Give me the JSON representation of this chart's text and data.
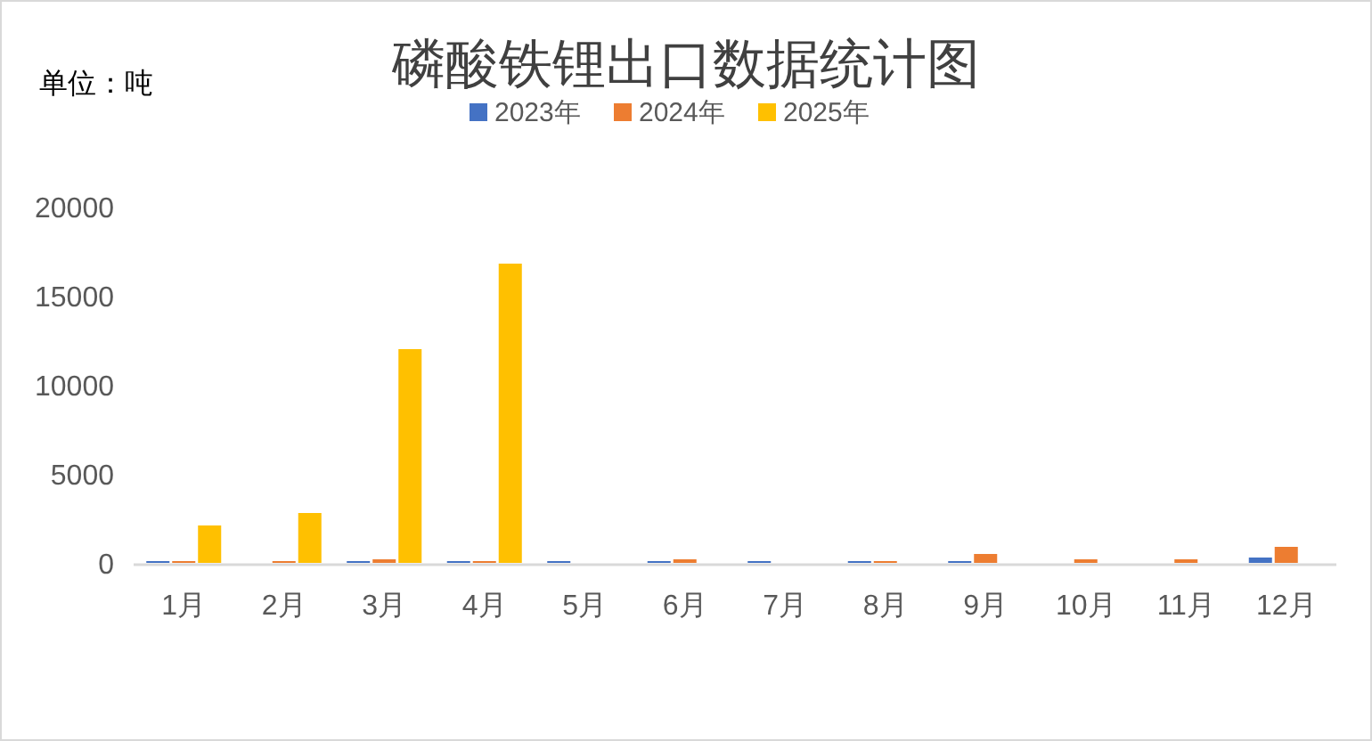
{
  "chart_data": {
    "type": "bar",
    "title": "磷酸铁锂出口数据统计图",
    "annotations": [
      "单位：吨"
    ],
    "categories": [
      "1月",
      "2月",
      "3月",
      "4月",
      "5月",
      "6月",
      "7月",
      "8月",
      "9月",
      "10月",
      "11月",
      "12月"
    ],
    "series": [
      {
        "name": "2023年",
        "color": "#4472c4",
        "values": [
          100,
          null,
          100,
          100,
          100,
          100,
          100,
          100,
          100,
          null,
          null,
          300
        ]
      },
      {
        "name": "2024年",
        "color": "#ed7d31",
        "values": [
          100,
          100,
          200,
          100,
          null,
          200,
          null,
          100,
          500,
          200,
          200,
          900
        ]
      },
      {
        "name": "2025年",
        "color": "#ffc000",
        "values": [
          2100,
          2800,
          12000,
          16800,
          null,
          null,
          null,
          null,
          null,
          null,
          null,
          null
        ]
      }
    ],
    "ylim": [
      0,
      20000
    ],
    "yticks": [
      0,
      5000,
      10000,
      15000,
      20000
    ],
    "grid": false,
    "legend": "top"
  }
}
